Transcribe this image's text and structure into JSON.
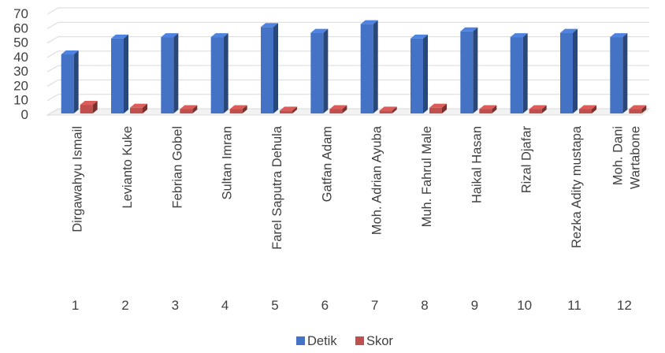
{
  "chart_data": {
    "type": "bar",
    "style": "3d-clustered-column",
    "categories": [
      "1",
      "2",
      "3",
      "4",
      "5",
      "6",
      "7",
      "8",
      "9",
      "10",
      "11",
      "12"
    ],
    "names": [
      "Dirgawahyu Ismail",
      "Levianto Kuke",
      "Febrian Gobel",
      "Sultan Imran",
      "Farel Saputra Dehula",
      "Gatfan Adam",
      "Moh. Adrian Ayuba",
      "Muh. Fahrul Male",
      "Haikal Hasan",
      "Rizal Djafar",
      "Rezka Adity mustapa",
      "Moh. Dani\nWartabone"
    ],
    "series": [
      {
        "name": "Detik",
        "color": "#4472C4",
        "values": [
          41,
          52,
          53,
          53,
          60,
          56,
          62,
          52,
          57,
          53,
          56,
          53
        ]
      },
      {
        "name": "Skor",
        "color": "#C0504D",
        "values": [
          6,
          4,
          3,
          3,
          2,
          3,
          2,
          4,
          3,
          3,
          3,
          3
        ]
      }
    ],
    "ylim": [
      0,
      70
    ],
    "yticks": [
      "0",
      "10",
      "20",
      "30",
      "40",
      "50",
      "60",
      "70"
    ],
    "grid": true,
    "legend": "bottom"
  }
}
